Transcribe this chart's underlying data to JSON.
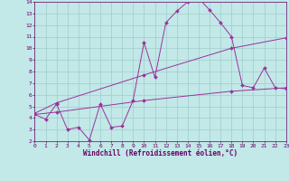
{
  "xlabel": "Windchill (Refroidissement éolien,°C)",
  "bg_color": "#c2e8e8",
  "grid_color": "#a0cccc",
  "line_color": "#993399",
  "xlim": [
    0,
    23
  ],
  "ylim": [
    2,
    14
  ],
  "xticks": [
    0,
    1,
    2,
    3,
    4,
    5,
    6,
    7,
    8,
    9,
    10,
    11,
    12,
    13,
    14,
    15,
    16,
    17,
    18,
    19,
    20,
    21,
    22,
    23
  ],
  "yticks": [
    2,
    3,
    4,
    5,
    6,
    7,
    8,
    9,
    10,
    11,
    12,
    13,
    14
  ],
  "line1_x": [
    0,
    1,
    2,
    3,
    4,
    5,
    6,
    7,
    8,
    9,
    10,
    11,
    12,
    13,
    14,
    15,
    16,
    17,
    18,
    19,
    20,
    21,
    22,
    23
  ],
  "line1_y": [
    4.3,
    3.9,
    5.2,
    3.0,
    3.2,
    2.1,
    5.2,
    3.2,
    3.3,
    5.5,
    10.5,
    7.5,
    12.2,
    13.2,
    14.0,
    14.3,
    13.3,
    12.2,
    11.0,
    6.8,
    6.6,
    8.3,
    6.6,
    6.5
  ],
  "line2_x": [
    0,
    2,
    10,
    18,
    23
  ],
  "line2_y": [
    4.4,
    5.3,
    7.7,
    10.0,
    10.9
  ],
  "line3_x": [
    0,
    2,
    10,
    18,
    23
  ],
  "line3_y": [
    4.3,
    4.5,
    5.5,
    6.3,
    6.6
  ]
}
